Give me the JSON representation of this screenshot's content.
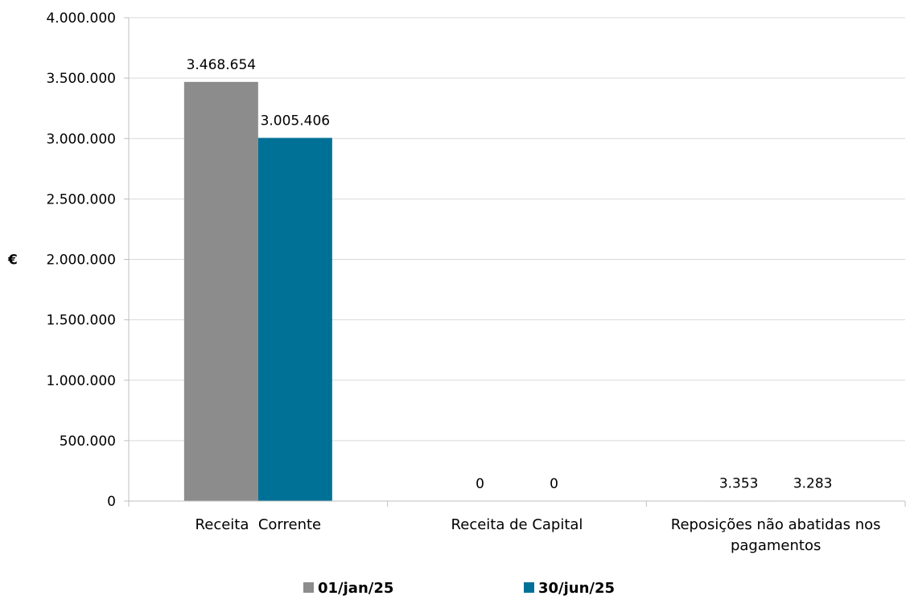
{
  "chart_data": {
    "type": "bar",
    "categories": [
      [
        "Receita  Corrente"
      ],
      [
        "Receita de Capital"
      ],
      [
        "Reposições não abatidas nos",
        "pagamentos"
      ]
    ],
    "series": [
      {
        "name": "01/jan/25",
        "values": [
          3468654,
          0,
          3353
        ],
        "labels": [
          "3.468.654",
          "0",
          "3.353"
        ],
        "color": "#8C8C8C"
      },
      {
        "name": "30/jun/25",
        "values": [
          3005406,
          0,
          3283
        ],
        "labels": [
          "3.005.406",
          "0",
          "3.283"
        ],
        "color": "#007196"
      }
    ],
    "ylabel": "€",
    "ylim": [
      0,
      4000000
    ],
    "yticks": [
      0,
      500000,
      1000000,
      1500000,
      2000000,
      2500000,
      3000000,
      3500000,
      4000000
    ],
    "ytick_labels": [
      "0",
      "500.000",
      "1.000.000",
      "1.500.000",
      "2.000.000",
      "2.500.000",
      "3.000.000",
      "3.500.000",
      "4.000.000"
    ],
    "grid": true,
    "legend_position": "bottom"
  }
}
